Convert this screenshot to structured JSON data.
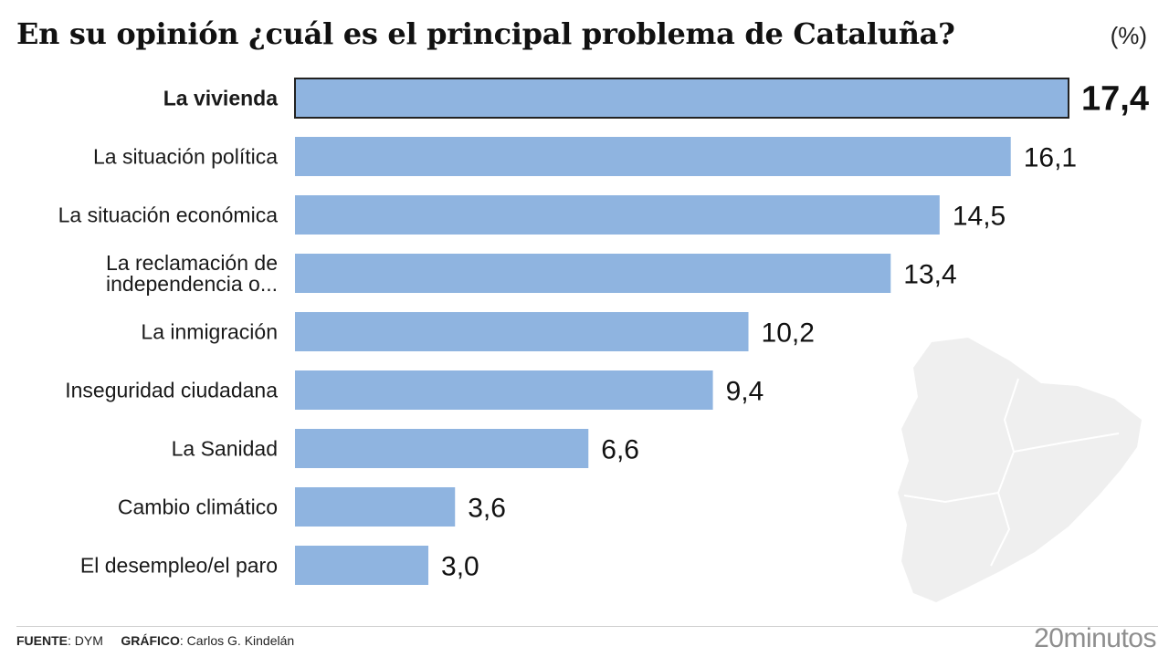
{
  "header": {
    "title": "En su opinión ¿cuál es el principal problema de Cataluña?",
    "unit": "(%)"
  },
  "colors": {
    "bar": "#8fb4e0",
    "highlight_border": "#222222",
    "map": "#efefef",
    "text": "#1a1a1a"
  },
  "chart_data": {
    "type": "bar",
    "orientation": "horizontal",
    "categories": [
      "La vivienda",
      "La situación política",
      "La situación económica",
      "La reclamación de independencia o...",
      "La inmigración",
      "Inseguridad ciudadana",
      "La Sanidad",
      "Cambio climático",
      "El desempleo/el paro"
    ],
    "category_lines": [
      [
        "La vivienda"
      ],
      [
        "La situación política"
      ],
      [
        "La situación económica"
      ],
      [
        "La reclamación de",
        "independencia o..."
      ],
      [
        "La inmigración"
      ],
      [
        "Inseguridad ciudadana"
      ],
      [
        "La Sanidad"
      ],
      [
        "Cambio climático"
      ],
      [
        "El desempleo/el paro"
      ]
    ],
    "values": [
      17.4,
      16.1,
      14.5,
      13.4,
      10.2,
      9.4,
      6.6,
      3.6,
      3.0
    ],
    "value_labels": [
      "17,4",
      "16,1",
      "14,5",
      "13,4",
      "10,2",
      "9,4",
      "6,6",
      "3,6",
      "3,0"
    ],
    "highlight_index": 0,
    "xlim": [
      0,
      17.4
    ],
    "grid": false,
    "legend": "none"
  },
  "footer": {
    "source_label": "FUENTE",
    "source_value": ": DYM",
    "graphic_label": "GRÁFICO",
    "graphic_value": ": Carlos G. Kindelán",
    "brand": "20minutos"
  }
}
